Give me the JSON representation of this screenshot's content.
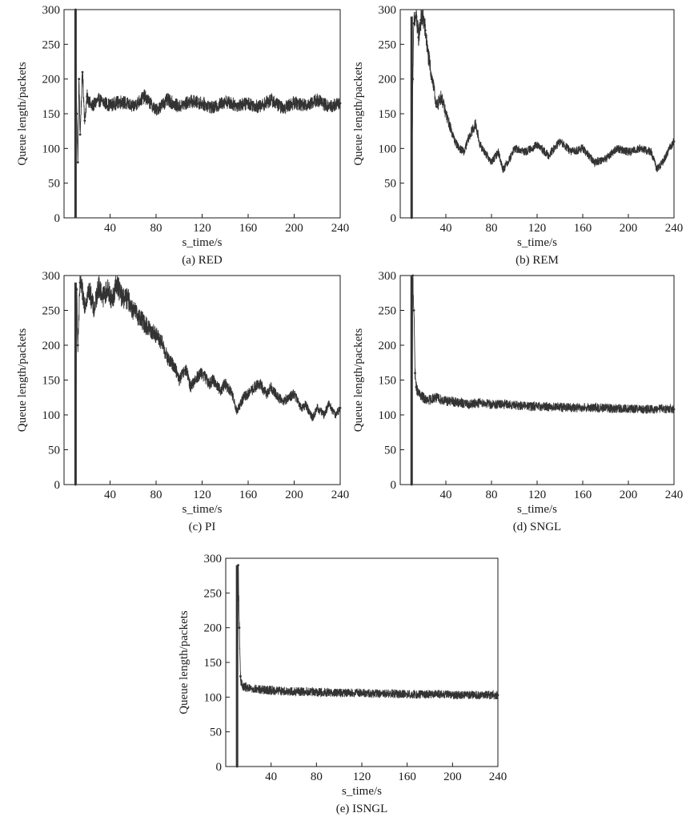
{
  "chart_data": [
    {
      "type": "line",
      "caption": "(a) RED",
      "xlabel": "s_time/s",
      "ylabel": "Queue length/packets",
      "xlim": [
        0,
        240
      ],
      "ylim": [
        0,
        300
      ],
      "xticks": [
        40,
        80,
        120,
        160,
        200,
        240
      ],
      "yticks": [
        0,
        50,
        100,
        150,
        200,
        250,
        300
      ],
      "x": [
        10,
        11,
        12,
        13,
        14,
        16,
        18,
        20,
        24,
        30,
        40,
        50,
        60,
        70,
        80,
        90,
        100,
        110,
        120,
        130,
        140,
        150,
        160,
        170,
        180,
        190,
        200,
        210,
        220,
        230,
        240
      ],
      "series": [
        {
          "values": [
            300,
            150,
            80,
            200,
            120,
            210,
            140,
            175,
            160,
            170,
            162,
            168,
            160,
            175,
            155,
            170,
            160,
            168,
            165,
            158,
            168,
            162,
            165,
            160,
            170,
            158,
            166,
            162,
            170,
            160,
            165
          ]
        }
      ]
    },
    {
      "type": "line",
      "caption": "(b) REM",
      "xlabel": "s_time/s",
      "ylabel": "Queue length/packets",
      "xlim": [
        0,
        240
      ],
      "ylim": [
        0,
        300
      ],
      "xticks": [
        40,
        80,
        120,
        160,
        200,
        240
      ],
      "yticks": [
        0,
        50,
        100,
        150,
        200,
        250,
        300
      ],
      "x": [
        10,
        11,
        12,
        14,
        16,
        18,
        20,
        22,
        24,
        28,
        32,
        36,
        40,
        44,
        48,
        52,
        56,
        60,
        66,
        70,
        76,
        80,
        86,
        90,
        96,
        100,
        110,
        120,
        130,
        140,
        150,
        160,
        170,
        180,
        190,
        200,
        210,
        220,
        225,
        230,
        236,
        240
      ],
      "series": [
        {
          "values": [
            0,
            200,
            280,
            290,
            260,
            285,
            290,
            270,
            240,
            200,
            160,
            175,
            150,
            130,
            110,
            100,
            95,
            115,
            135,
            105,
            90,
            80,
            95,
            70,
            85,
            100,
            95,
            105,
            90,
            110,
            95,
            100,
            80,
            85,
            100,
            95,
            100,
            95,
            70,
            80,
            100,
            110
          ]
        }
      ]
    },
    {
      "type": "line",
      "caption": "(c) PI",
      "xlabel": "s_time/s",
      "ylabel": "Queue length/packets",
      "xlim": [
        0,
        240
      ],
      "ylim": [
        0,
        300
      ],
      "xticks": [
        40,
        80,
        120,
        160,
        200,
        240
      ],
      "yticks": [
        0,
        50,
        100,
        150,
        200,
        250,
        300
      ],
      "x": [
        10,
        11,
        12,
        14,
        18,
        22,
        26,
        30,
        34,
        38,
        42,
        46,
        50,
        56,
        60,
        66,
        70,
        76,
        80,
        86,
        90,
        96,
        100,
        106,
        110,
        116,
        120,
        126,
        130,
        136,
        140,
        146,
        150,
        156,
        160,
        166,
        170,
        176,
        180,
        186,
        190,
        196,
        200,
        206,
        210,
        216,
        220,
        226,
        230,
        236,
        240
      ],
      "series": [
        {
          "values": [
            0,
            280,
            200,
            290,
            260,
            280,
            250,
            285,
            270,
            280,
            265,
            290,
            270,
            265,
            250,
            240,
            230,
            220,
            215,
            200,
            180,
            170,
            150,
            165,
            140,
            155,
            160,
            145,
            150,
            135,
            145,
            130,
            105,
            125,
            130,
            140,
            145,
            130,
            140,
            125,
            120,
            125,
            130,
            110,
            115,
            95,
            110,
            100,
            115,
            100,
            110
          ]
        }
      ]
    },
    {
      "type": "line",
      "caption": "(d) SNGL",
      "xlabel": "s_time/s",
      "ylabel": "Queue length/packets",
      "xlim": [
        0,
        240
      ],
      "ylim": [
        0,
        300
      ],
      "xticks": [
        40,
        80,
        120,
        160,
        200,
        240
      ],
      "yticks": [
        0,
        50,
        100,
        150,
        200,
        250,
        300
      ],
      "x": [
        10,
        11,
        12,
        13,
        14,
        16,
        20,
        24,
        30,
        40,
        50,
        60,
        70,
        80,
        90,
        100,
        110,
        120,
        130,
        140,
        150,
        160,
        170,
        180,
        190,
        200,
        210,
        220,
        230,
        240
      ],
      "series": [
        {
          "values": [
            0,
            300,
            250,
            160,
            140,
            130,
            125,
            120,
            125,
            120,
            118,
            115,
            118,
            115,
            115,
            114,
            113,
            112,
            112,
            111,
            110,
            111,
            110,
            110,
            109,
            109,
            108,
            108,
            109,
            108
          ]
        }
      ]
    },
    {
      "type": "line",
      "caption": "(e) ISNGL",
      "xlabel": "s_time/s",
      "ylabel": "Queue length/packets",
      "xlim": [
        0,
        240
      ],
      "ylim": [
        0,
        300
      ],
      "xticks": [
        40,
        80,
        120,
        160,
        200,
        240
      ],
      "yticks": [
        0,
        50,
        100,
        150,
        200,
        250,
        300
      ],
      "x": [
        10,
        11,
        12,
        13,
        14,
        16,
        20,
        24,
        30,
        40,
        50,
        60,
        70,
        80,
        90,
        100,
        110,
        120,
        130,
        140,
        150,
        160,
        170,
        180,
        190,
        200,
        210,
        220,
        230,
        240
      ],
      "series": [
        {
          "values": [
            0,
            290,
            200,
            130,
            118,
            115,
            112,
            112,
            111,
            110,
            109,
            108,
            108,
            107,
            107,
            106,
            106,
            106,
            105,
            105,
            105,
            104,
            104,
            104,
            104,
            103,
            103,
            103,
            103,
            103
          ]
        }
      ]
    }
  ],
  "colors": {
    "line": "#333333",
    "axis": "#1a1a1a"
  }
}
